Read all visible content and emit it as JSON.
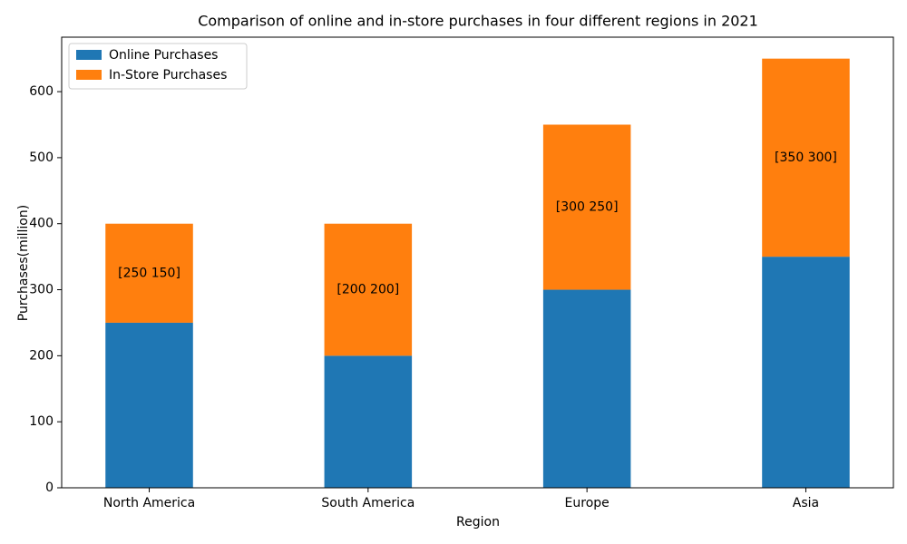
{
  "chart_data": {
    "type": "stacked_bar",
    "title": "Comparison of online and in-store purchases in four different regions in 2021",
    "x_label": "Region",
    "y_label": "Purchases(million)",
    "categories": [
      "North America",
      "South America",
      "Europe",
      "Asia"
    ],
    "series": [
      {
        "name": "Online Purchases",
        "color": "#1f77b4",
        "values": [
          250,
          200,
          300,
          350
        ]
      },
      {
        "name": "In-Store Purchases",
        "color": "#ff7f0e",
        "values": [
          150,
          200,
          250,
          300
        ]
      }
    ],
    "annotations": [
      "[250 150]",
      "[200 200]",
      "[300 250]",
      "[350 300]"
    ],
    "ylim": [
      0,
      682.5
    ],
    "yticks": [
      0,
      100,
      200,
      300,
      400,
      500,
      600
    ],
    "grid": false,
    "legend": "upper left"
  }
}
